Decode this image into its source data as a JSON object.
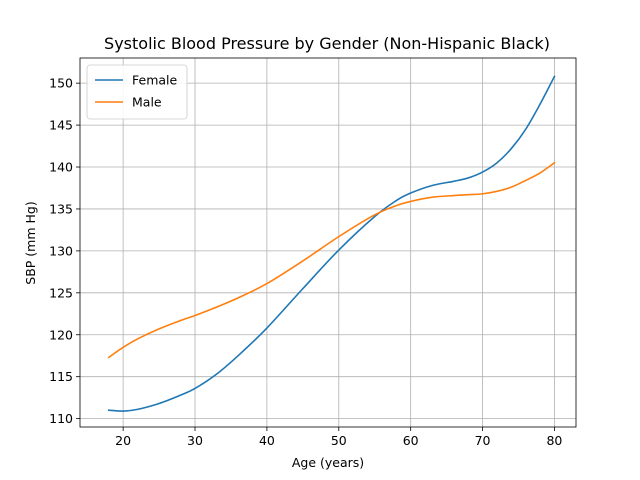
{
  "chart_data": {
    "type": "line",
    "title": "Systolic Blood Pressure by Gender (Non-Hispanic Black)",
    "xlabel": "Age (years)",
    "ylabel": "SBP (mm Hg)",
    "xlim": [
      14,
      83
    ],
    "ylim": [
      109,
      153
    ],
    "xticks": [
      20,
      30,
      40,
      50,
      60,
      70,
      80
    ],
    "yticks": [
      110,
      115,
      120,
      125,
      130,
      135,
      140,
      145,
      150
    ],
    "grid": true,
    "legend_position": "top-left",
    "series": [
      {
        "name": "Female",
        "color": "#1f77b4",
        "x": [
          18,
          20,
          22,
          25,
          28,
          30,
          33,
          36,
          40,
          45,
          50,
          55,
          58,
          60,
          63,
          66,
          68,
          70,
          72,
          74,
          76,
          78,
          80
        ],
        "y": [
          111.0,
          110.9,
          111.1,
          111.8,
          112.8,
          113.6,
          115.3,
          117.5,
          120.8,
          125.5,
          130.1,
          134.1,
          136.0,
          136.9,
          137.8,
          138.3,
          138.7,
          139.4,
          140.5,
          142.2,
          144.5,
          147.5,
          150.8
        ]
      },
      {
        "name": "Male",
        "color": "#ff7f0e",
        "x": [
          18,
          20,
          22,
          25,
          28,
          30,
          33,
          36,
          40,
          45,
          50,
          55,
          58,
          60,
          63,
          66,
          68,
          70,
          72,
          74,
          76,
          78,
          80
        ],
        "y": [
          117.3,
          118.5,
          119.5,
          120.7,
          121.7,
          122.3,
          123.3,
          124.4,
          126.1,
          128.8,
          131.7,
          134.3,
          135.4,
          135.9,
          136.4,
          136.6,
          136.7,
          136.8,
          137.1,
          137.6,
          138.4,
          139.3,
          140.5
        ]
      }
    ]
  }
}
